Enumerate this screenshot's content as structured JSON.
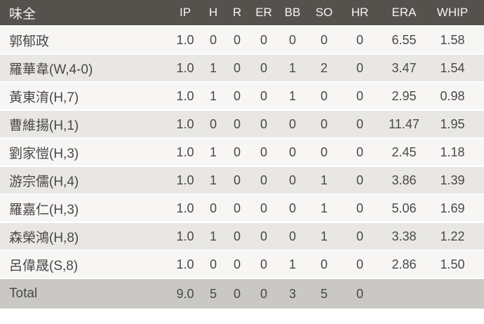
{
  "table": {
    "team": "味全",
    "columns": [
      "IP",
      "H",
      "R",
      "ER",
      "BB",
      "SO",
      "HR",
      "ERA",
      "WHIP"
    ],
    "rows": [
      {
        "name": "郭郁政",
        "values": [
          "1.0",
          "0",
          "0",
          "0",
          "0",
          "0",
          "0",
          "6.55",
          "1.58"
        ]
      },
      {
        "name": "羅華韋(W,4-0)",
        "values": [
          "1.0",
          "1",
          "0",
          "0",
          "1",
          "2",
          "0",
          "3.47",
          "1.54"
        ]
      },
      {
        "name": "黃東淯(H,7)",
        "values": [
          "1.0",
          "1",
          "0",
          "0",
          "1",
          "0",
          "0",
          "2.95",
          "0.98"
        ]
      },
      {
        "name": "曹維揚(H,1)",
        "values": [
          "1.0",
          "0",
          "0",
          "0",
          "0",
          "0",
          "0",
          "11.47",
          "1.95"
        ]
      },
      {
        "name": "劉家愷(H,3)",
        "values": [
          "1.0",
          "1",
          "0",
          "0",
          "0",
          "0",
          "0",
          "2.45",
          "1.18"
        ]
      },
      {
        "name": "游宗儒(H,4)",
        "values": [
          "1.0",
          "1",
          "0",
          "0",
          "0",
          "1",
          "0",
          "3.86",
          "1.39"
        ]
      },
      {
        "name": "羅嘉仁(H,3)",
        "values": [
          "1.0",
          "0",
          "0",
          "0",
          "0",
          "1",
          "0",
          "5.06",
          "1.69"
        ]
      },
      {
        "name": "森榮鴻(H,8)",
        "values": [
          "1.0",
          "1",
          "0",
          "0",
          "0",
          "1",
          "0",
          "3.38",
          "1.22"
        ]
      },
      {
        "name": "呂偉晟(S,8)",
        "values": [
          "1.0",
          "0",
          "0",
          "0",
          "1",
          "0",
          "0",
          "2.86",
          "1.50"
        ]
      }
    ],
    "total": {
      "label": "Total",
      "values": [
        "9.0",
        "5",
        "0",
        "0",
        "3",
        "5",
        "0",
        "",
        ""
      ]
    }
  },
  "colors": {
    "header_bg": "#55524e",
    "header_text": "#f4f3f1",
    "row_light_bg": "#f7f6f5",
    "row_dark_bg": "#e8e7e5",
    "total_row_bg": "#c9c8c5",
    "cell_text": "#4a4846",
    "row_separator": "#ffffff"
  }
}
